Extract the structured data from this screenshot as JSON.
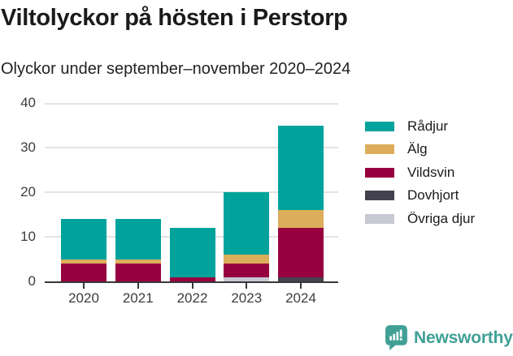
{
  "header": {
    "title": "Viltolyckor på hösten i Perstorp",
    "subtitle": "Olyckor under september–november 2020–2024"
  },
  "chart_data": {
    "type": "bar",
    "stacked": true,
    "title": "Viltolyckor på hösten i Perstorp",
    "subtitle": "Olyckor under september–november 2020–2024",
    "categories": [
      "2020",
      "2021",
      "2022",
      "2023",
      "2024"
    ],
    "series": [
      {
        "name": "Rådjur",
        "color": "#00A39B",
        "values": [
          9,
          9,
          11,
          14,
          19
        ]
      },
      {
        "name": "Älg",
        "color": "#DCAD5B",
        "values": [
          1,
          1,
          0,
          2,
          4
        ]
      },
      {
        "name": "Vildsvin",
        "color": "#970040",
        "values": [
          4,
          4,
          1,
          3,
          11
        ]
      },
      {
        "name": "Dovhjort",
        "color": "#43414E",
        "values": [
          0,
          0,
          0,
          0,
          1
        ]
      },
      {
        "name": "Övriga djur",
        "color": "#C8C8D4",
        "values": [
          0,
          0,
          0,
          1,
          0
        ]
      }
    ],
    "stack_order_bottom_to_top": [
      "Övriga djur",
      "Dovhjort",
      "Vildsvin",
      "Älg",
      "Rådjur"
    ],
    "totals": [
      14,
      14,
      12,
      20,
      35
    ],
    "xlabel": "",
    "ylabel": "",
    "ylim": [
      0,
      40
    ],
    "yticks": [
      0,
      10,
      20,
      30,
      40
    ],
    "grid": true,
    "legend_position": "right"
  },
  "footer": {
    "brand": "Newsworthy",
    "brand_color": "#40A096",
    "logo_icon": "bar-chart-speech-bubble-icon"
  },
  "colors": {
    "background": "#FFFFFF",
    "title_text": "#1A1A1A",
    "subtitle_text": "#222222",
    "axis_text": "#3D3D3D",
    "axis_line": "#383838",
    "gridline": "#E3E3E3"
  }
}
